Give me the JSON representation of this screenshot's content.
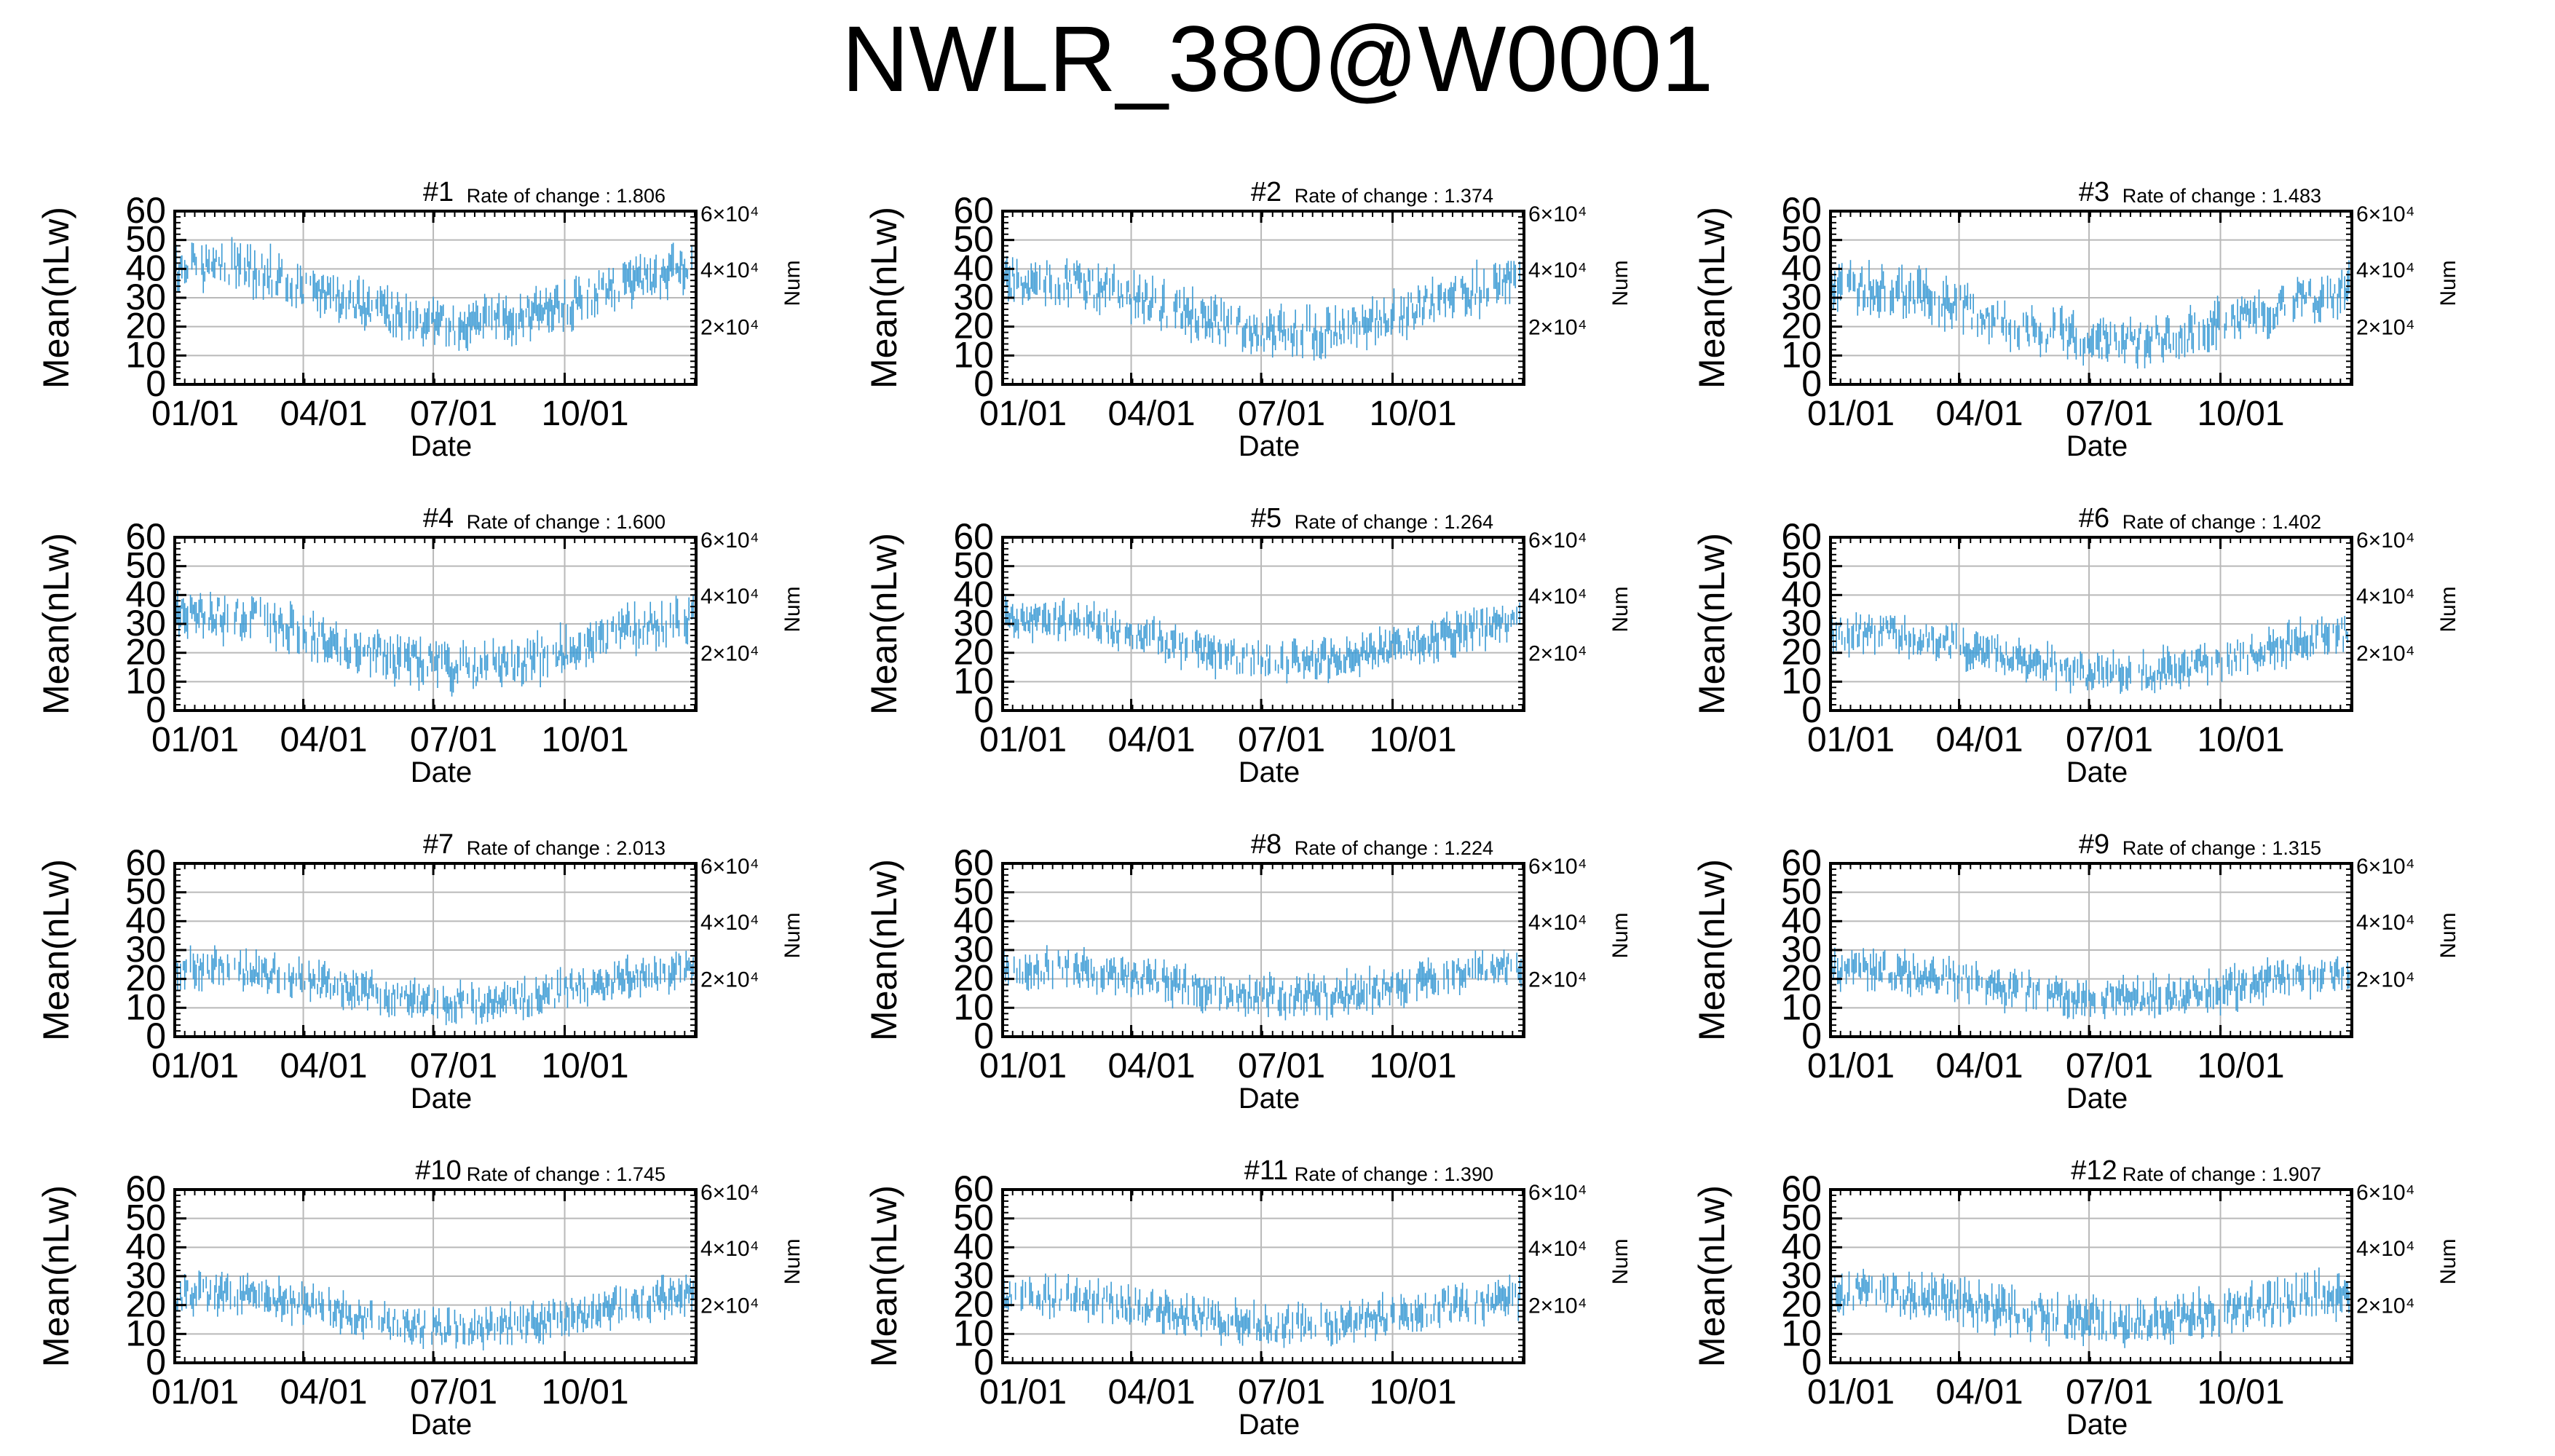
{
  "title": "NWLR_380@W0001",
  "colors": {
    "series": "#3a9ad4",
    "grid": "#b9b9b9",
    "frame": "#000000"
  },
  "chart_data": [
    {
      "type": "scatter",
      "panel": "#1",
      "rate": "Rate of change : 1.806",
      "mean_level": 31,
      "amplitude": 10,
      "noise": 5,
      "xlabel": "Date",
      "ylabel": "Mean(nLw)",
      "y2label": "Num",
      "ylim": [
        0,
        60
      ],
      "yticks": [
        0,
        10,
        20,
        30,
        40,
        50,
        60
      ],
      "xticks": [
        "01/01",
        "04/01",
        "07/01",
        "10/01"
      ],
      "y2ticks": [
        "2×10⁴",
        "4×10⁴",
        "6×10⁴"
      ],
      "grid": true
    },
    {
      "type": "scatter",
      "panel": "#2",
      "rate": "Rate of change : 1.374",
      "mean_level": 27,
      "amplitude": 9,
      "noise": 5,
      "xlabel": "Date",
      "ylabel": "Mean(nLw)",
      "y2label": "Num",
      "ylim": [
        0,
        60
      ],
      "yticks": [
        0,
        10,
        20,
        30,
        40,
        50,
        60
      ],
      "xticks": [
        "01/01",
        "04/01",
        "07/01",
        "10/01"
      ],
      "y2ticks": [
        "2×10⁴",
        "4×10⁴",
        "6×10⁴"
      ],
      "grid": true
    },
    {
      "type": "scatter",
      "panel": "#3",
      "rate": "Rate of change : 1.483",
      "mean_level": 24,
      "amplitude": 9,
      "noise": 5,
      "xlabel": "Date",
      "ylabel": "Mean(nLw)",
      "y2label": "Num",
      "ylim": [
        0,
        60
      ],
      "yticks": [
        0,
        10,
        20,
        30,
        40,
        50,
        60
      ],
      "xticks": [
        "01/01",
        "04/01",
        "07/01",
        "10/01"
      ],
      "y2ticks": [
        "2×10⁴",
        "4×10⁴",
        "6×10⁴"
      ],
      "grid": true
    },
    {
      "type": "scatter",
      "panel": "#4",
      "rate": "Rate of change : 1.600",
      "mean_level": 24,
      "amplitude": 9,
      "noise": 5,
      "xlabel": "Date",
      "ylabel": "Mean(nLw)",
      "y2label": "Num",
      "ylim": [
        0,
        60
      ],
      "yticks": [
        0,
        10,
        20,
        30,
        40,
        50,
        60
      ],
      "xticks": [
        "01/01",
        "04/01",
        "07/01",
        "10/01"
      ],
      "y2ticks": [
        "2×10⁴",
        "4×10⁴",
        "6×10⁴"
      ],
      "grid": true
    },
    {
      "type": "scatter",
      "panel": "#5",
      "rate": "Rate of change : 1.264",
      "mean_level": 24,
      "amplitude": 7,
      "noise": 4,
      "xlabel": "Date",
      "ylabel": "Mean(nLw)",
      "y2label": "Num",
      "ylim": [
        0,
        60
      ],
      "yticks": [
        0,
        10,
        20,
        30,
        40,
        50,
        60
      ],
      "xticks": [
        "01/01",
        "04/01",
        "07/01",
        "10/01"
      ],
      "y2ticks": [
        "2×10⁴",
        "4×10⁴",
        "6×10⁴"
      ],
      "grid": true
    },
    {
      "type": "scatter",
      "panel": "#6",
      "rate": "Rate of change : 1.402",
      "mean_level": 20,
      "amplitude": 7,
      "noise": 4,
      "xlabel": "Date",
      "ylabel": "Mean(nLw)",
      "y2label": "Num",
      "ylim": [
        0,
        60
      ],
      "yticks": [
        0,
        10,
        20,
        30,
        40,
        50,
        60
      ],
      "xticks": [
        "01/01",
        "04/01",
        "07/01",
        "10/01"
      ],
      "y2ticks": [
        "2×10⁴",
        "4×10⁴",
        "6×10⁴"
      ],
      "grid": true
    },
    {
      "type": "scatter",
      "panel": "#7",
      "rate": "Rate of change : 2.013",
      "mean_level": 18,
      "amplitude": 6,
      "noise": 4,
      "xlabel": "Date",
      "ylabel": "Mean(nLw)",
      "y2label": "Num",
      "ylim": [
        0,
        60
      ],
      "yticks": [
        0,
        10,
        20,
        30,
        40,
        50,
        60
      ],
      "xticks": [
        "01/01",
        "04/01",
        "07/01",
        "10/01"
      ],
      "y2ticks": [
        "2×10⁴",
        "4×10⁴",
        "6×10⁴"
      ],
      "grid": true
    },
    {
      "type": "scatter",
      "panel": "#8",
      "rate": "Rate of change : 1.224",
      "mean_level": 19,
      "amplitude": 5,
      "noise": 4,
      "xlabel": "Date",
      "ylabel": "Mean(nLw)",
      "y2label": "Num",
      "ylim": [
        0,
        60
      ],
      "yticks": [
        0,
        10,
        20,
        30,
        40,
        50,
        60
      ],
      "xticks": [
        "01/01",
        "04/01",
        "07/01",
        "10/01"
      ],
      "y2ticks": [
        "2×10⁴",
        "4×10⁴",
        "6×10⁴"
      ],
      "grid": true
    },
    {
      "type": "scatter",
      "panel": "#9",
      "rate": "Rate of change : 1.315",
      "mean_level": 18,
      "amplitude": 5,
      "noise": 4,
      "xlabel": "Date",
      "ylabel": "Mean(nLw)",
      "y2label": "Num",
      "ylim": [
        0,
        60
      ],
      "yticks": [
        0,
        10,
        20,
        30,
        40,
        50,
        60
      ],
      "xticks": [
        "01/01",
        "04/01",
        "07/01",
        "10/01"
      ],
      "y2ticks": [
        "2×10⁴",
        "4×10⁴",
        "6×10⁴"
      ],
      "grid": true
    },
    {
      "type": "scatter",
      "panel": "#10",
      "rate": "Rate of change : 1.745",
      "mean_level": 18,
      "amplitude": 6,
      "noise": 4,
      "xlabel": "Date",
      "ylabel": "Mean(nLw)",
      "y2label": "Num",
      "ylim": [
        0,
        60
      ],
      "yticks": [
        0,
        10,
        20,
        30,
        40,
        50,
        60
      ],
      "xticks": [
        "01/01",
        "04/01",
        "07/01",
        "10/01"
      ],
      "y2ticks": [
        "2×10⁴",
        "4×10⁴",
        "6×10⁴"
      ],
      "grid": true
    },
    {
      "type": "scatter",
      "panel": "#11",
      "rate": "Rate of change : 1.390",
      "mean_level": 18,
      "amplitude": 5,
      "noise": 4,
      "xlabel": "Date",
      "ylabel": "Mean(nLw)",
      "y2label": "Num",
      "ylim": [
        0,
        60
      ],
      "yticks": [
        0,
        10,
        20,
        30,
        40,
        50,
        60
      ],
      "xticks": [
        "01/01",
        "04/01",
        "07/01",
        "10/01"
      ],
      "y2ticks": [
        "2×10⁴",
        "4×10⁴",
        "6×10⁴"
      ],
      "grid": true
    },
    {
      "type": "scatter",
      "panel": "#12",
      "rate": "Rate of change : 1.907",
      "mean_level": 19,
      "amplitude": 5,
      "noise": 5,
      "xlabel": "Date",
      "ylabel": "Mean(nLw)",
      "y2label": "Num",
      "ylim": [
        0,
        60
      ],
      "yticks": [
        0,
        10,
        20,
        30,
        40,
        50,
        60
      ],
      "xticks": [
        "01/01",
        "04/01",
        "07/01",
        "10/01"
      ],
      "y2ticks": [
        "2×10⁴",
        "4×10⁴",
        "6×10⁴"
      ],
      "grid": true
    }
  ]
}
